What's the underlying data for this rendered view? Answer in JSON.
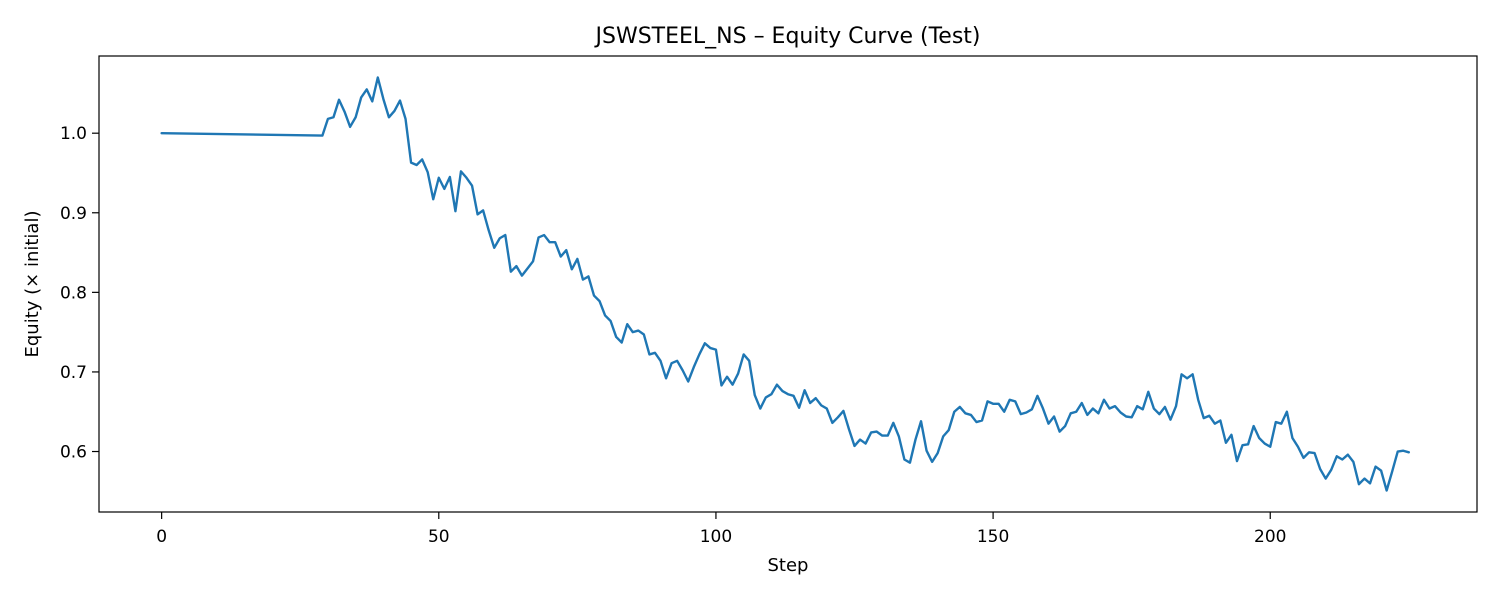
{
  "chart_data": {
    "type": "line",
    "title": "JSWSTEEL_NS – Equity Curve (Test)",
    "xlabel": "Step",
    "ylabel": "Equity (× initial)",
    "xlim": [
      -11.3,
      237.3
    ],
    "ylim": [
      0.524,
      1.097
    ],
    "xticks": [
      0,
      50,
      100,
      150,
      200
    ],
    "yticks": [
      0.6,
      0.7,
      0.8,
      0.9,
      1.0
    ],
    "xtick_labels": [
      "0",
      "50",
      "100",
      "150",
      "200"
    ],
    "ytick_labels": [
      "0.6",
      "0.7",
      "0.8",
      "0.9",
      "1.0"
    ],
    "grid": false,
    "color": "#1f77b4",
    "series": [
      {
        "x": [
          0,
          29,
          30,
          31,
          32,
          33,
          34,
          35,
          36,
          37,
          38,
          39,
          40,
          41,
          42,
          43,
          44,
          45,
          46,
          47,
          48,
          49,
          50,
          51,
          52,
          53,
          54,
          55,
          56,
          57,
          58,
          59,
          60,
          61,
          62,
          63,
          64,
          65,
          66,
          67,
          68,
          69,
          70,
          71,
          72,
          73,
          74,
          75,
          76,
          77,
          78,
          79,
          80,
          81,
          82,
          83,
          84,
          85,
          86,
          87,
          88,
          89,
          90,
          91,
          92,
          93,
          94,
          95,
          96,
          97,
          98,
          99,
          100,
          101,
          102,
          103,
          104,
          105,
          106,
          107,
          108,
          109,
          110,
          111,
          112,
          113,
          114,
          115,
          116,
          117,
          118,
          119,
          120,
          121,
          122,
          123,
          124,
          125,
          126,
          127,
          128,
          129,
          130,
          131,
          132,
          133,
          134,
          135,
          136,
          137,
          138,
          139,
          140,
          141,
          142,
          143,
          144,
          145,
          146,
          147,
          148,
          149,
          150,
          151,
          152,
          153,
          154,
          155,
          156,
          157,
          158,
          159,
          160,
          161,
          162,
          163,
          164,
          165,
          166,
          167,
          168,
          169,
          170,
          171,
          172,
          173,
          174,
          175,
          176,
          177,
          178,
          179,
          180,
          181,
          182,
          183,
          184,
          185,
          186,
          187,
          188,
          189,
          190,
          191,
          192,
          193,
          194,
          195,
          196,
          197,
          198,
          199,
          200,
          201,
          202,
          203,
          204,
          205,
          206,
          207,
          208,
          209,
          210,
          211,
          212,
          213,
          214,
          215,
          216,
          217,
          218,
          219,
          220,
          221,
          222,
          223,
          224,
          225
        ],
        "y": [
          1.0,
          0.997,
          1.018,
          1.02,
          1.042,
          1.027,
          1.008,
          1.02,
          1.045,
          1.055,
          1.04,
          1.07,
          1.043,
          1.02,
          1.028,
          1.041,
          1.018,
          0.963,
          0.96,
          0.967,
          0.951,
          0.917,
          0.944,
          0.93,
          0.945,
          0.902,
          0.952,
          0.944,
          0.934,
          0.898,
          0.903,
          0.878,
          0.856,
          0.868,
          0.872,
          0.826,
          0.833,
          0.821,
          0.83,
          0.839,
          0.869,
          0.872,
          0.863,
          0.863,
          0.845,
          0.853,
          0.829,
          0.842,
          0.816,
          0.82,
          0.796,
          0.789,
          0.771,
          0.764,
          0.744,
          0.737,
          0.76,
          0.75,
          0.752,
          0.747,
          0.722,
          0.724,
          0.714,
          0.692,
          0.711,
          0.714,
          0.702,
          0.688,
          0.706,
          0.722,
          0.736,
          0.73,
          0.728,
          0.683,
          0.694,
          0.684,
          0.698,
          0.722,
          0.714,
          0.671,
          0.654,
          0.668,
          0.672,
          0.684,
          0.676,
          0.672,
          0.67,
          0.655,
          0.677,
          0.661,
          0.667,
          0.658,
          0.654,
          0.636,
          0.643,
          0.651,
          0.628,
          0.607,
          0.615,
          0.61,
          0.624,
          0.625,
          0.62,
          0.62,
          0.636,
          0.619,
          0.59,
          0.586,
          0.615,
          0.638,
          0.601,
          0.587,
          0.598,
          0.619,
          0.627,
          0.65,
          0.656,
          0.648,
          0.646,
          0.637,
          0.639,
          0.663,
          0.66,
          0.66,
          0.65,
          0.665,
          0.663,
          0.647,
          0.649,
          0.653,
          0.67,
          0.654,
          0.635,
          0.644,
          0.625,
          0.632,
          0.648,
          0.65,
          0.661,
          0.646,
          0.654,
          0.648,
          0.665,
          0.654,
          0.657,
          0.649,
          0.644,
          0.643,
          0.657,
          0.653,
          0.675,
          0.654,
          0.647,
          0.656,
          0.64,
          0.657,
          0.697,
          0.692,
          0.697,
          0.665,
          0.642,
          0.645,
          0.635,
          0.639,
          0.611,
          0.621,
          0.588,
          0.608,
          0.609,
          0.632,
          0.617,
          0.61,
          0.606,
          0.637,
          0.635,
          0.65,
          0.617,
          0.606,
          0.592,
          0.599,
          0.598,
          0.578,
          0.566,
          0.577,
          0.594,
          0.59,
          0.596,
          0.587,
          0.559,
          0.566,
          0.56,
          0.581,
          0.576,
          0.551,
          0.575,
          0.6,
          0.601,
          0.599
        ]
      }
    ]
  }
}
